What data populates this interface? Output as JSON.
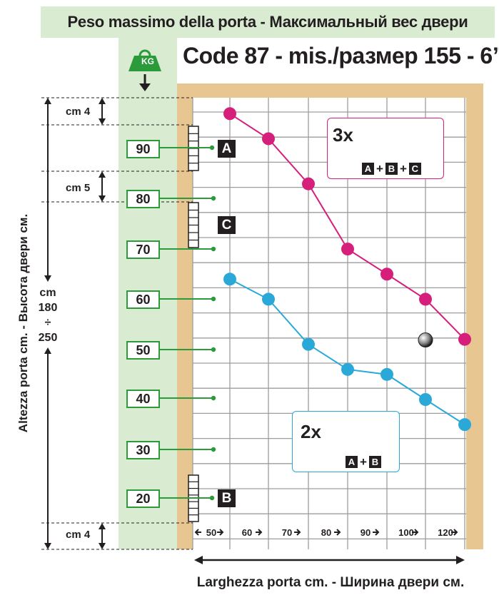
{
  "banner": {
    "text": "Peso massimo della porta  -  Максимальный вес двери"
  },
  "kg_icon": {
    "icon": "weight-icon",
    "label": "KG"
  },
  "code_title": "Code 87 - mis./размер 155 - 6”",
  "y_axis": {
    "label": "Altezza porta cm. - Высота двери см.",
    "range": [
      "cm",
      "180",
      "÷",
      "250"
    ],
    "gap_top": "cm 4",
    "gap_mid": "cm 5",
    "gap_bottom": "cm 4",
    "weight_ticks": [
      "90",
      "80",
      "70",
      "60",
      "50",
      "40",
      "30",
      "20"
    ]
  },
  "x_axis": {
    "label": "Larghezza porta cm.  -  Ширина двери см.",
    "ticks": [
      "50",
      "60",
      "70",
      "80",
      "90",
      "100",
      "120"
    ]
  },
  "hinge_positions": {
    "a": {
      "letter": "A",
      "weight": 90
    },
    "c": {
      "letter": "C",
      "weight": 75
    },
    "b": {
      "letter": "B",
      "weight": 20
    }
  },
  "legend": {
    "three": {
      "count": "3x",
      "a": "A",
      "b": "B",
      "c": "C",
      "plus": "+"
    },
    "two": {
      "count": "2x",
      "a": "A",
      "b": "B",
      "plus": "+"
    }
  },
  "colors": {
    "banner": "#d9ecd2",
    "green": "#2b9a3a",
    "frame": "#e7c692",
    "magenta": "#d61f7b",
    "cyan": "#2aa9d9",
    "grid": "#9d9d9d"
  },
  "chart_data": {
    "type": "line",
    "xlabel": "Larghezza porta cm.  -  Ширина двери см.",
    "ylabel": "Peso massimo della porta  -  Максимальный вес двери",
    "x_categories": [
      "50",
      "60",
      "70",
      "80",
      "90",
      "100",
      "120"
    ],
    "ylim": [
      15,
      97
    ],
    "grid": true,
    "series": [
      {
        "name": "3x A+B+C",
        "color": "#d61f7b",
        "points": [
          {
            "x": "50",
            "y": 97
          },
          {
            "x": "60",
            "y": 92
          },
          {
            "x": "70",
            "y": 83
          },
          {
            "x": "80",
            "y": 70
          },
          {
            "x": "90",
            "y": 65
          },
          {
            "x": "100",
            "y": 60
          },
          {
            "x": "120",
            "y": 52
          }
        ]
      },
      {
        "name": "2x A+B",
        "color": "#2aa9d9",
        "points": [
          {
            "x": "50",
            "y": 64
          },
          {
            "x": "60",
            "y": 60
          },
          {
            "x": "70",
            "y": 51
          },
          {
            "x": "80",
            "y": 46
          },
          {
            "x": "90",
            "y": 45
          },
          {
            "x": "100",
            "y": 40
          },
          {
            "x": "120",
            "y": 35
          }
        ]
      }
    ],
    "marker": {
      "x": "100",
      "y": 55,
      "kind": "grey-ball"
    }
  }
}
